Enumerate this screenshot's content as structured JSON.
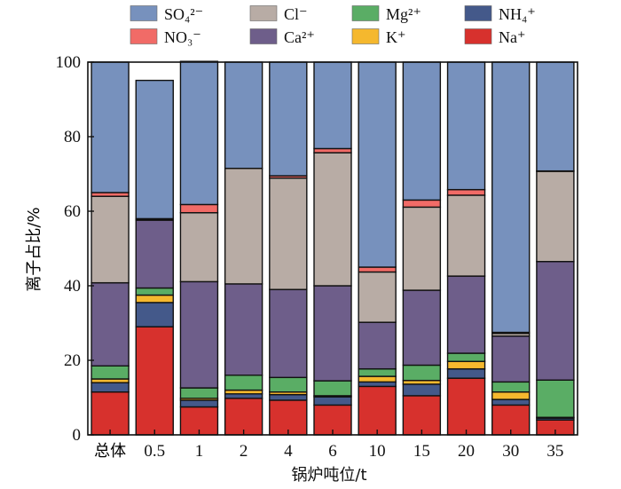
{
  "chart_data": {
    "type": "bar",
    "stacked": true,
    "xlabel": "锅炉吨位/t",
    "ylabel": "离子占比/%",
    "ylim": [
      0,
      100
    ],
    "yticks": [
      "0",
      "20",
      "40",
      "60",
      "80",
      "100"
    ],
    "categories": [
      "总体",
      "0.5",
      "1",
      "2",
      "4",
      "6",
      "10",
      "15",
      "20",
      "30",
      "35"
    ],
    "legend_position": "top",
    "series": [
      {
        "name": "Na⁺",
        "color": "#d7312d",
        "values": [
          11.5,
          29,
          7.5,
          9.8,
          9.3,
          8,
          13,
          10.5,
          15.2,
          8,
          4
        ]
      },
      {
        "name": "NH₄⁺",
        "color": "#44598a",
        "values": [
          2.5,
          6.5,
          1.8,
          1.2,
          1.5,
          2.2,
          1.2,
          3.1,
          2.5,
          1.5,
          0.5
        ]
      },
      {
        "name": "K⁺",
        "color": "#f5b82e",
        "values": [
          1,
          2,
          0.5,
          1,
          0.7,
          0.3,
          1.5,
          1,
          2,
          2,
          0.2
        ]
      },
      {
        "name": "Mg²⁺",
        "color": "#5aad65",
        "values": [
          3.5,
          1.9,
          2.8,
          4,
          3.9,
          4,
          2,
          4.1,
          2.2,
          2.7,
          10
        ]
      },
      {
        "name": "Ca²⁺",
        "color": "#6e5e8a",
        "values": [
          22.3,
          18.2,
          28.5,
          24.5,
          23.6,
          25.5,
          12.5,
          20.1,
          20.7,
          12.3,
          31.8
        ]
      },
      {
        "name": "Cl⁻",
        "color": "#b8aca5",
        "values": [
          23.2,
          0.3,
          18.5,
          31,
          29.9,
          35.7,
          13.5,
          22.3,
          21.7,
          0.7,
          24.2
        ]
      },
      {
        "name": "NO₃⁻",
        "color": "#f16b67",
        "values": [
          1,
          0.1,
          2.2,
          0,
          0.6,
          1.1,
          1.3,
          1.9,
          1.5,
          0.3,
          0.1
        ]
      },
      {
        "name": "SO₄²⁻",
        "color": "#7791bd",
        "values": [
          35,
          37.1,
          38.4,
          28.5,
          30.5,
          23.2,
          55,
          37,
          34.2,
          72.5,
          29.2
        ]
      }
    ],
    "legend_order": [
      "SO₄²⁻",
      "Cl⁻",
      "Mg²⁺",
      "NH₄⁺",
      "NO₃⁻",
      "Ca²⁺",
      "K⁺",
      "Na⁺"
    ]
  }
}
